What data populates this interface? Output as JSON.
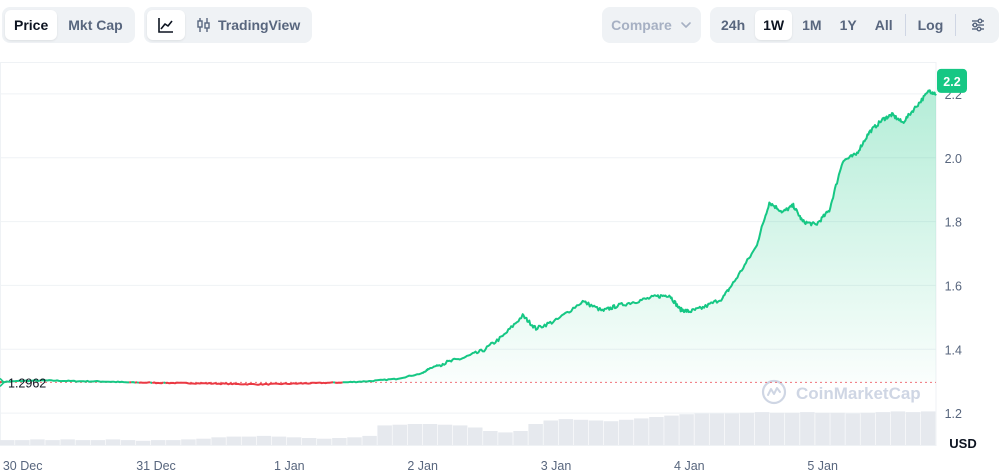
{
  "toolbar": {
    "metric_tabs": [
      {
        "label": "Price",
        "active": true
      },
      {
        "label": "Mkt Cap",
        "active": false
      }
    ],
    "chart_type": {
      "line_icon": "line-chart-icon",
      "tradingview_icon": "candlestick-icon",
      "tradingview_label": "TradingView"
    },
    "compare_label": "Compare",
    "ranges": [
      {
        "label": "24h",
        "active": false
      },
      {
        "label": "1W",
        "active": true
      },
      {
        "label": "1M",
        "active": false
      },
      {
        "label": "1Y",
        "active": false
      },
      {
        "label": "All",
        "active": false
      }
    ],
    "log_label": "Log",
    "settings_icon": "sliders-icon"
  },
  "watermark": {
    "text": "CoinMarketCap",
    "icon": "coinmarketcap-logo-icon"
  },
  "colors": {
    "up": "#16c784",
    "down": "#ea3943",
    "grid": "#eff2f5",
    "axis_text": "#58667e",
    "volume": "#e6e9ee"
  },
  "chart_data": {
    "type": "area",
    "currency_label": "USD",
    "baseline": {
      "value": 1.2962,
      "label": "1.2962"
    },
    "current_price": {
      "value": 2.2,
      "label": "2.2"
    },
    "ylim": [
      1.1,
      2.3
    ],
    "y_ticks": [
      1.2,
      1.4,
      1.6,
      1.8,
      2.0,
      2.2
    ],
    "y_tick_labels": [
      "1.2",
      "1.4",
      "1.6",
      "1.8",
      "2.0",
      "2.2"
    ],
    "x_tick_labels": [
      "30 Dec",
      "31 Dec",
      "1 Jan",
      "2 Jan",
      "3 Jan",
      "4 Jan",
      "5 Jan"
    ],
    "x_tick_positions": [
      0.0,
      1.0,
      2.0,
      3.0,
      4.0,
      5.0,
      6.0
    ],
    "xlim": [
      -0.17,
      6.85
    ],
    "series": [
      {
        "x": [
          -0.17,
          0.0,
          0.2,
          0.4,
          0.6,
          0.8,
          1.0,
          1.2,
          1.4,
          1.6,
          1.8,
          2.0,
          2.2,
          2.4,
          2.6,
          2.8,
          3.0,
          3.05,
          3.15,
          3.3,
          3.45,
          3.6,
          3.75,
          3.85,
          4.0,
          4.2,
          4.35,
          4.45,
          4.6,
          4.75,
          4.85,
          4.93,
          5.0,
          5.1,
          5.25,
          5.35,
          5.5,
          5.6,
          5.7,
          5.78,
          5.85,
          5.95,
          6.05,
          6.15,
          6.25,
          6.35,
          6.45,
          6.52,
          6.6,
          6.7,
          6.8,
          6.85
        ],
        "y": [
          1.297,
          1.301,
          1.302,
          1.3,
          1.299,
          1.296,
          1.295,
          1.294,
          1.293,
          1.291,
          1.29,
          1.292,
          1.294,
          1.296,
          1.3,
          1.307,
          1.325,
          1.34,
          1.355,
          1.372,
          1.395,
          1.44,
          1.505,
          1.465,
          1.49,
          1.55,
          1.52,
          1.535,
          1.55,
          1.565,
          1.57,
          1.525,
          1.518,
          1.53,
          1.56,
          1.62,
          1.72,
          1.86,
          1.83,
          1.85,
          1.8,
          1.79,
          1.835,
          1.99,
          2.01,
          2.08,
          2.12,
          2.135,
          2.11,
          2.16,
          2.21,
          2.2
        ]
      }
    ],
    "volume": [
      0.07,
      0.07,
      0.08,
      0.07,
      0.08,
      0.07,
      0.07,
      0.08,
      0.07,
      0.06,
      0.07,
      0.07,
      0.08,
      0.09,
      0.11,
      0.12,
      0.12,
      0.13,
      0.12,
      0.11,
      0.1,
      0.09,
      0.1,
      0.11,
      0.13,
      0.28,
      0.29,
      0.3,
      0.3,
      0.29,
      0.28,
      0.25,
      0.2,
      0.18,
      0.2,
      0.3,
      0.35,
      0.37,
      0.36,
      0.35,
      0.34,
      0.36,
      0.38,
      0.4,
      0.42,
      0.44,
      0.45,
      0.45,
      0.45,
      0.46,
      0.47,
      0.46,
      0.46,
      0.47,
      0.46,
      0.46,
      0.45,
      0.46,
      0.47,
      0.48,
      0.47,
      0.48
    ]
  }
}
